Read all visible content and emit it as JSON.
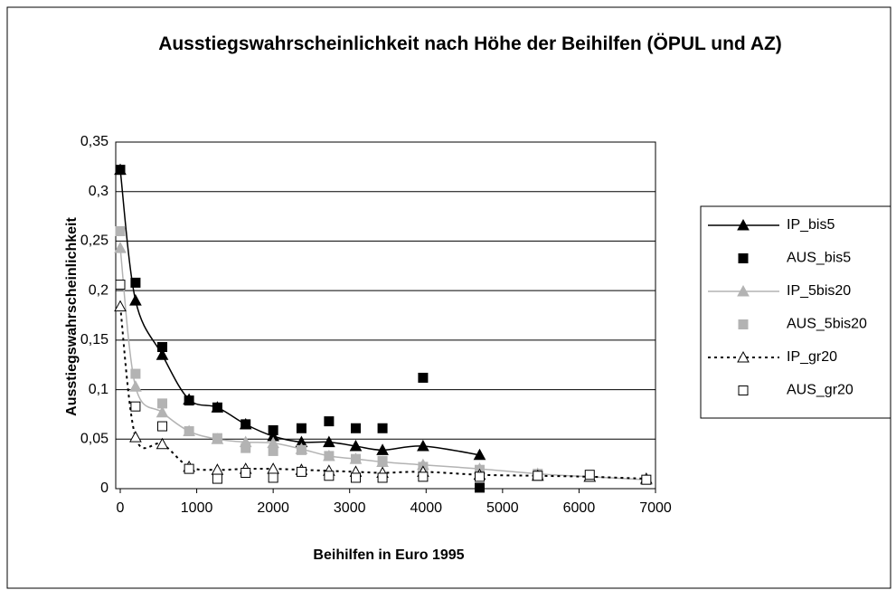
{
  "chart_data": {
    "type": "scatter-smooth",
    "title": "Ausstiegswahrscheinlichkeit nach Höhe der Beihilfen (ÖPUL und AZ)",
    "x_label": "Beihilfen in Euro 1995",
    "y_label": "Ausstiegswahrscheinlichkeit",
    "xlim": [
      0,
      7000
    ],
    "xticks": [
      0,
      1000,
      2000,
      3000,
      4000,
      5000,
      6000,
      7000
    ],
    "ylim": [
      0,
      0.35
    ],
    "yticks": [
      0,
      {
        "value": 0.05,
        "label": "0,05"
      },
      {
        "value": 0.1,
        "label": "0,1"
      },
      {
        "value": 0.15,
        "label": "0,15"
      },
      {
        "value": 0.2,
        "label": "0,2"
      },
      {
        "value": 0.25,
        "label": "0,25"
      },
      {
        "value": 0.3,
        "label": "0,3"
      },
      {
        "value": 0.35,
        "label": "0,35"
      }
    ],
    "grid": true,
    "legend": "right",
    "series": [
      {
        "name": "IP_bis5",
        "color": "#000000",
        "marker": "triangle",
        "line": "solid",
        "x": [
          0,
          200,
          550,
          900,
          1270,
          1640,
          2000,
          2370,
          2730,
          3080,
          3430,
          3960,
          4700
        ],
        "values": [
          0.322,
          0.19,
          0.135,
          0.09,
          0.082,
          0.065,
          0.053,
          0.047,
          0.047,
          0.043,
          0.039,
          0.043,
          0.034
        ]
      },
      {
        "name": "AUS_bis5",
        "color": "#000000",
        "marker": "square",
        "line": "none",
        "x": [
          0,
          200,
          550,
          900,
          1270,
          1640,
          2000,
          2370,
          2730,
          3080,
          3430,
          3960,
          4700
        ],
        "values": [
          0.322,
          0.208,
          0.143,
          0.089,
          0.082,
          0.065,
          0.059,
          0.061,
          0.068,
          0.061,
          0.061,
          0.112,
          0.001
        ]
      },
      {
        "name": "IP_5bis20",
        "color": "#b3b3b3",
        "marker": "triangle",
        "line": "solid",
        "x": [
          0,
          200,
          550,
          900,
          1270,
          1640,
          2000,
          2370,
          2730,
          3080,
          3430,
          3960,
          4700,
          5460,
          6140,
          6880
        ],
        "values": [
          0.243,
          0.103,
          0.077,
          0.058,
          0.05,
          0.047,
          0.046,
          0.04,
          0.033,
          0.03,
          0.027,
          0.024,
          0.02,
          0.015,
          0.012,
          0.009
        ]
      },
      {
        "name": "AUS_5bis20",
        "color": "#b3b3b3",
        "marker": "square",
        "line": "none",
        "x": [
          0,
          200,
          550,
          900,
          1270,
          1640,
          2000,
          2370,
          2730,
          3080,
          3430,
          3960,
          4700,
          5460
        ],
        "values": [
          0.26,
          0.116,
          0.086,
          0.058,
          0.051,
          0.041,
          0.038,
          0.039,
          0.033,
          0.03,
          0.028,
          0.022,
          0.019,
          0.015
        ]
      },
      {
        "name": "IP_gr20",
        "color": "#000000",
        "marker": "triangle-open",
        "line": "dotted",
        "x": [
          0,
          200,
          550,
          900,
          1270,
          1640,
          2000,
          2370,
          2730,
          3080,
          3430,
          3960,
          4700,
          5460,
          6140,
          6880
        ],
        "values": [
          0.184,
          0.052,
          0.045,
          0.022,
          0.019,
          0.02,
          0.02,
          0.019,
          0.018,
          0.017,
          0.016,
          0.017,
          0.014,
          0.013,
          0.012,
          0.01
        ]
      },
      {
        "name": "AUS_gr20",
        "color": "#000000",
        "marker": "square-open",
        "line": "none",
        "x": [
          0,
          200,
          550,
          900,
          1270,
          1640,
          2000,
          2370,
          2730,
          3080,
          3430,
          3960,
          4700,
          5460,
          6140,
          6880
        ],
        "values": [
          0.206,
          0.083,
          0.063,
          0.02,
          0.01,
          0.016,
          0.011,
          0.017,
          0.013,
          0.011,
          0.011,
          0.012,
          0.012,
          0.013,
          0.014,
          0.009
        ]
      }
    ]
  }
}
